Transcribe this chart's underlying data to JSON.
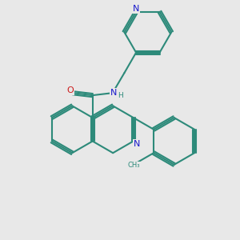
{
  "bg": "#e8e8e8",
  "bc": "#2d8a7a",
  "nc": "#1a1acc",
  "oc": "#cc1a1a",
  "lw": 1.5,
  "dbl_off": 0.07,
  "fs": 7.5,
  "figsize": [
    3.0,
    3.0
  ],
  "dpi": 100,
  "xlim": [
    -1.5,
    8.5
  ],
  "ylim": [
    -1.2,
    9.0
  ]
}
